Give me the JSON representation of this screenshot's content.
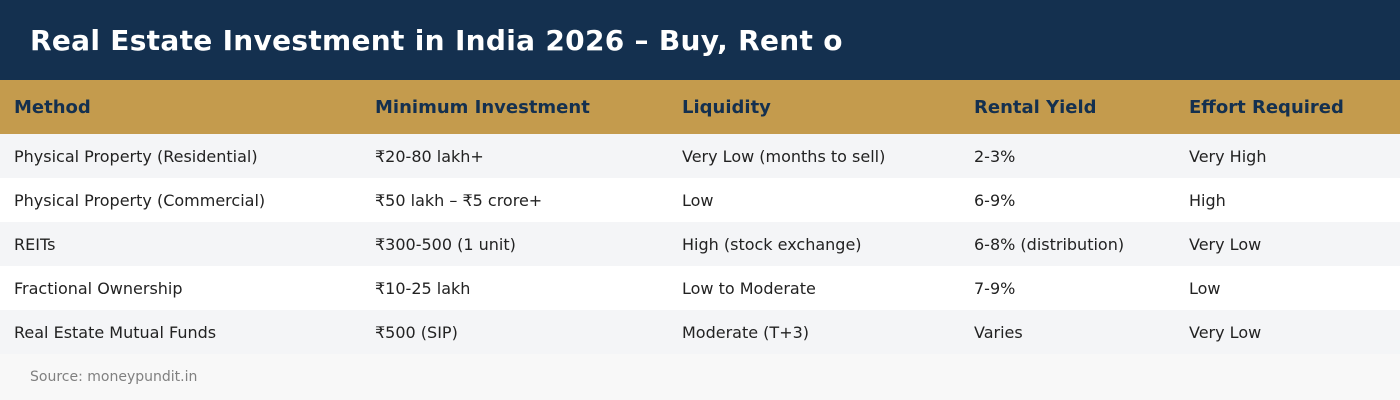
{
  "title": "Real Estate Investment in India 2026 – Buy, Rent o",
  "table": {
    "headers": [
      "Method",
      "Minimum Investment",
      "Liquidity",
      "Rental Yield",
      "Effort Required"
    ],
    "rows": [
      [
        "Physical Property (Residential)",
        "₹20-80 lakh+",
        "Very Low (months to sell)",
        "2-3%",
        "Very High"
      ],
      [
        "Physical Property (Commercial)",
        "₹50 lakh – ₹5 crore+",
        "Low",
        "6-9%",
        "High"
      ],
      [
        "REITs",
        "₹300-500 (1 unit)",
        "High (stock exchange)",
        "6-8% (distribution)",
        "Very Low"
      ],
      [
        "Fractional Ownership",
        "₹10-25 lakh",
        "Low to Moderate",
        "7-9%",
        "Low"
      ],
      [
        "Real Estate Mutual Funds",
        "₹500 (SIP)",
        "Moderate (T+3)",
        "Varies",
        "Very Low"
      ]
    ]
  },
  "source": "Source: moneypundit.in",
  "colors": {
    "title_bg": "#14304f",
    "header_bg": "#c49b4d",
    "row_alt_bg": "#f4f5f7"
  }
}
